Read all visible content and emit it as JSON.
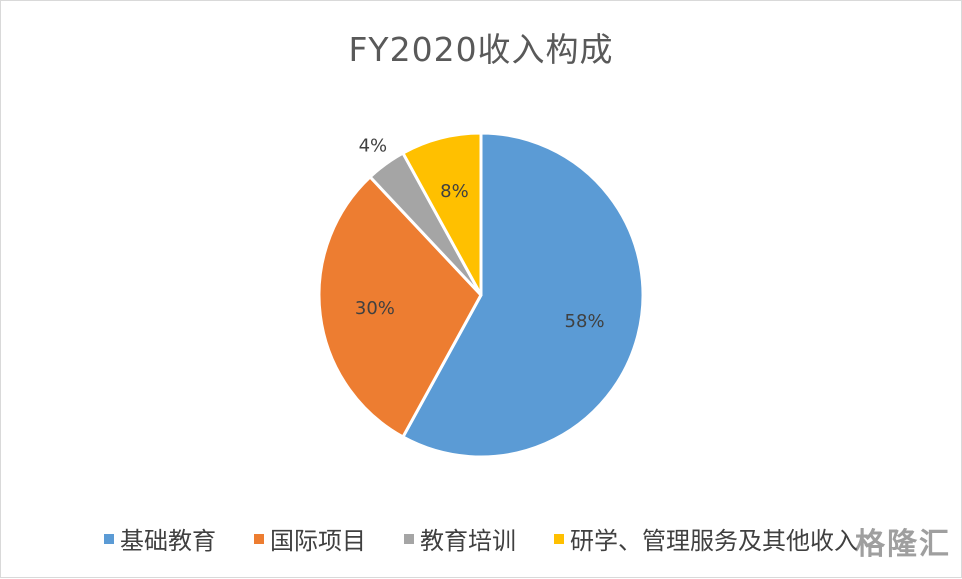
{
  "chart_data": {
    "type": "pie",
    "title": "FY2020收入构成",
    "slices": [
      {
        "label": "基础教育",
        "value": 58,
        "display": "58%",
        "color": "#5b9bd5"
      },
      {
        "label": "国际项目",
        "value": 30,
        "display": "30%",
        "color": "#ed7d31"
      },
      {
        "label": "教育培训",
        "value": 4,
        "display": "4%",
        "color": "#a5a5a5"
      },
      {
        "label": "研学、管理服务及其他收入",
        "value": 8,
        "display": "8%",
        "color": "#ffc000"
      }
    ],
    "legend_position": "bottom",
    "start_angle": "12 o'clock",
    "direction": "clockwise"
  },
  "watermark": "格隆汇"
}
